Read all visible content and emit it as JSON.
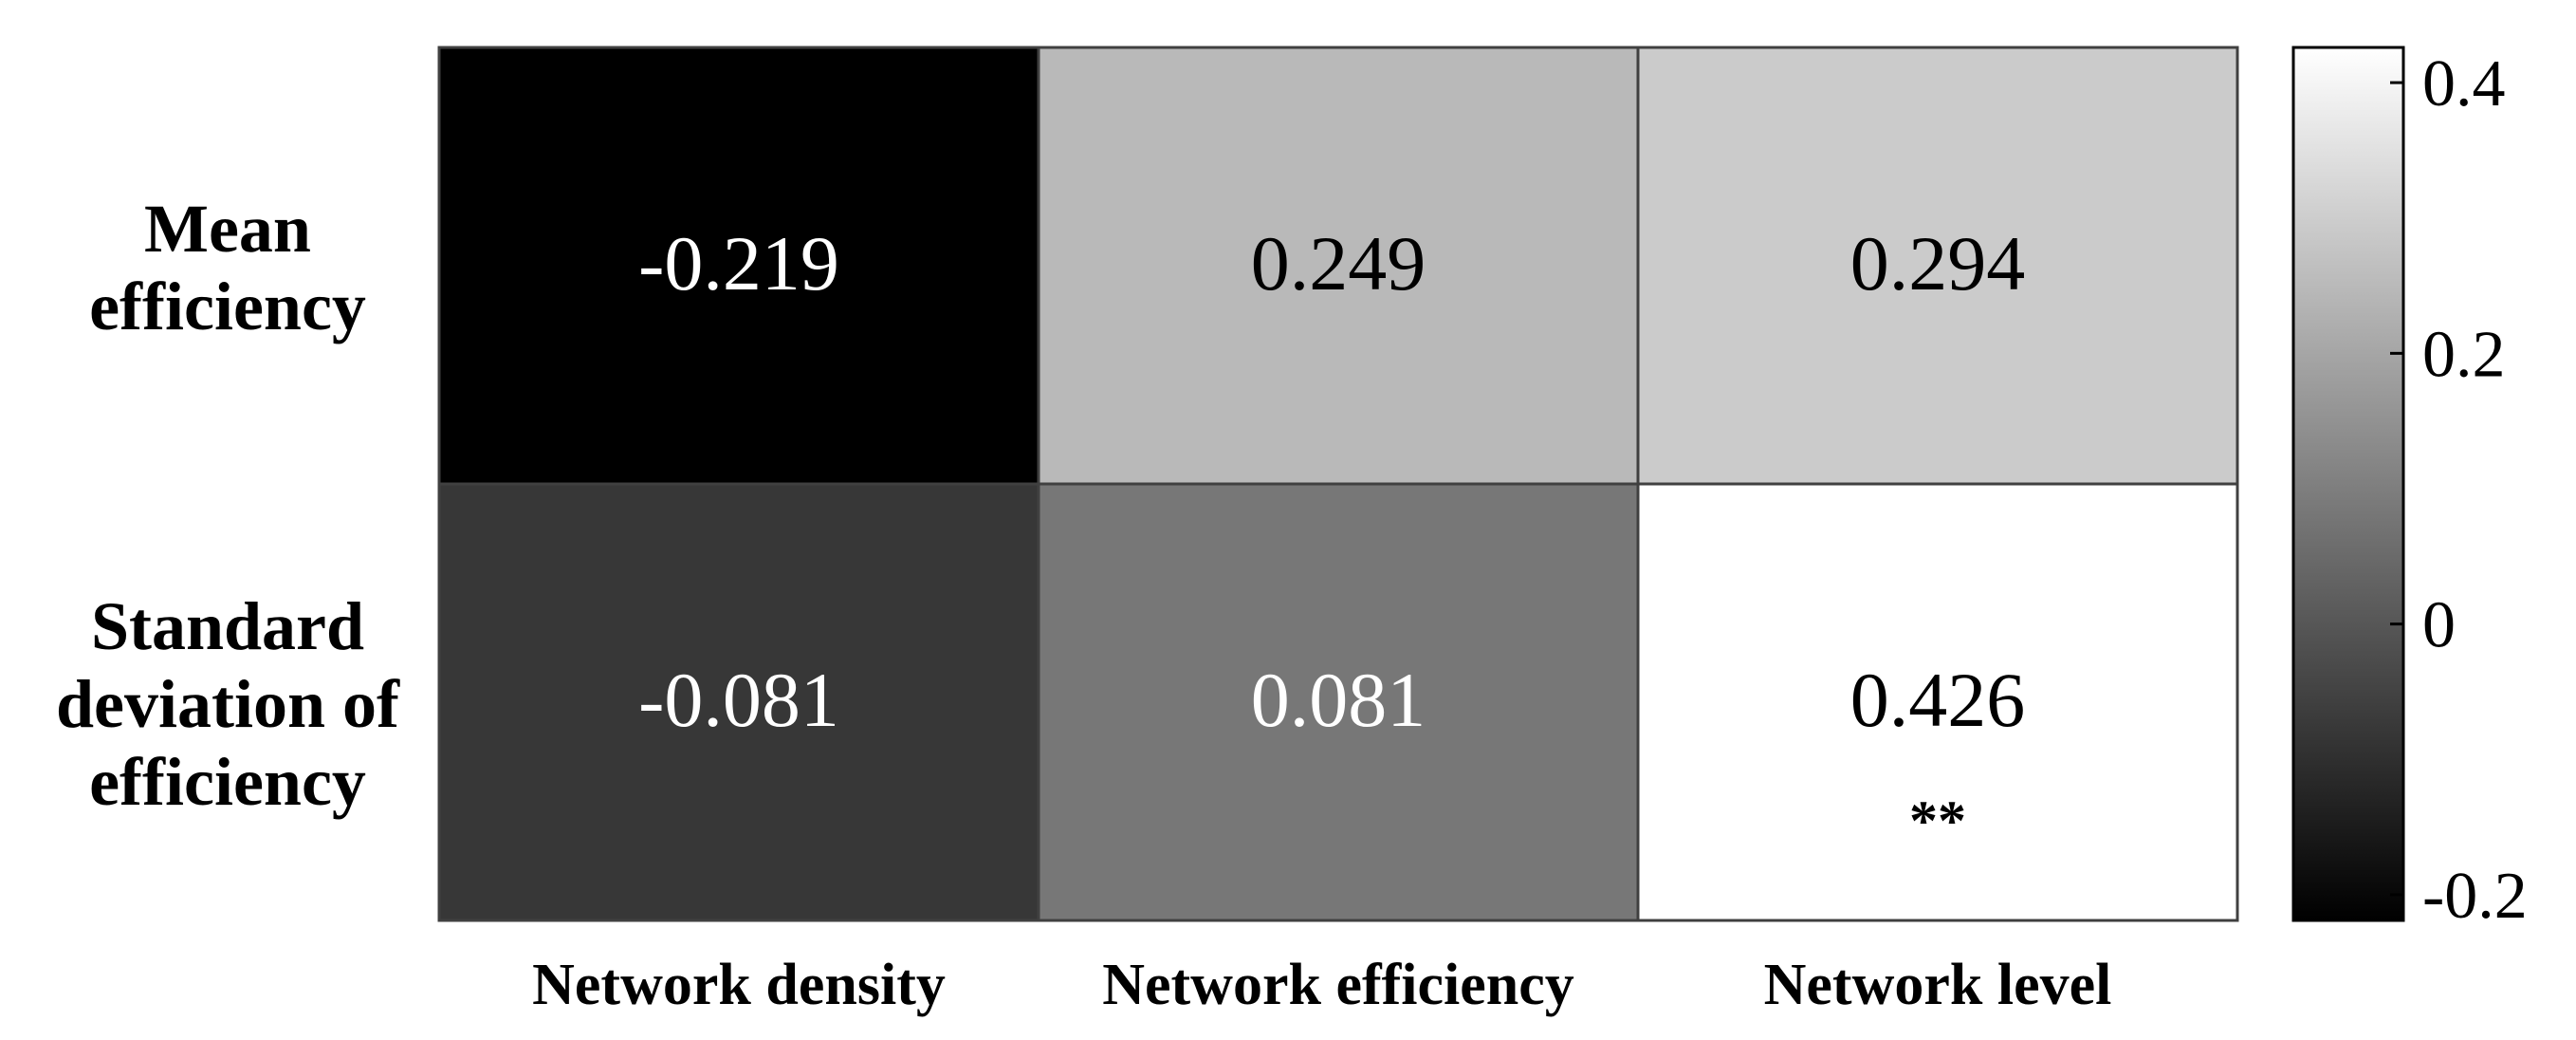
{
  "chart_data": {
    "type": "heatmap",
    "rows": [
      "Mean\nefficiency",
      "Standard\ndeviation of\nefficiency"
    ],
    "columns": [
      "Network density",
      "Network efficiency",
      "Network level"
    ],
    "values": [
      [
        -0.219,
        0.249,
        0.294
      ],
      [
        -0.081,
        0.081,
        0.426
      ]
    ],
    "cell_labels": [
      [
        "-0.219",
        "0.249",
        "0.294"
      ],
      [
        "-0.081",
        "0.081",
        "0.426"
      ]
    ],
    "significance": [
      [
        "",
        "",
        ""
      ],
      [
        "",
        "",
        "**"
      ]
    ],
    "colormap": "gray",
    "colorbar": {
      "range": [
        -0.219,
        0.426
      ],
      "ticks": [
        -0.2,
        0,
        0.2,
        0.4
      ],
      "tick_labels": [
        "-0.2",
        "0",
        "0.2",
        "0.4"
      ],
      "placement": "right"
    },
    "colors": {
      "low": "#000000",
      "high": "#ffffff",
      "grid": "#404040",
      "label_text": "#000000"
    }
  }
}
